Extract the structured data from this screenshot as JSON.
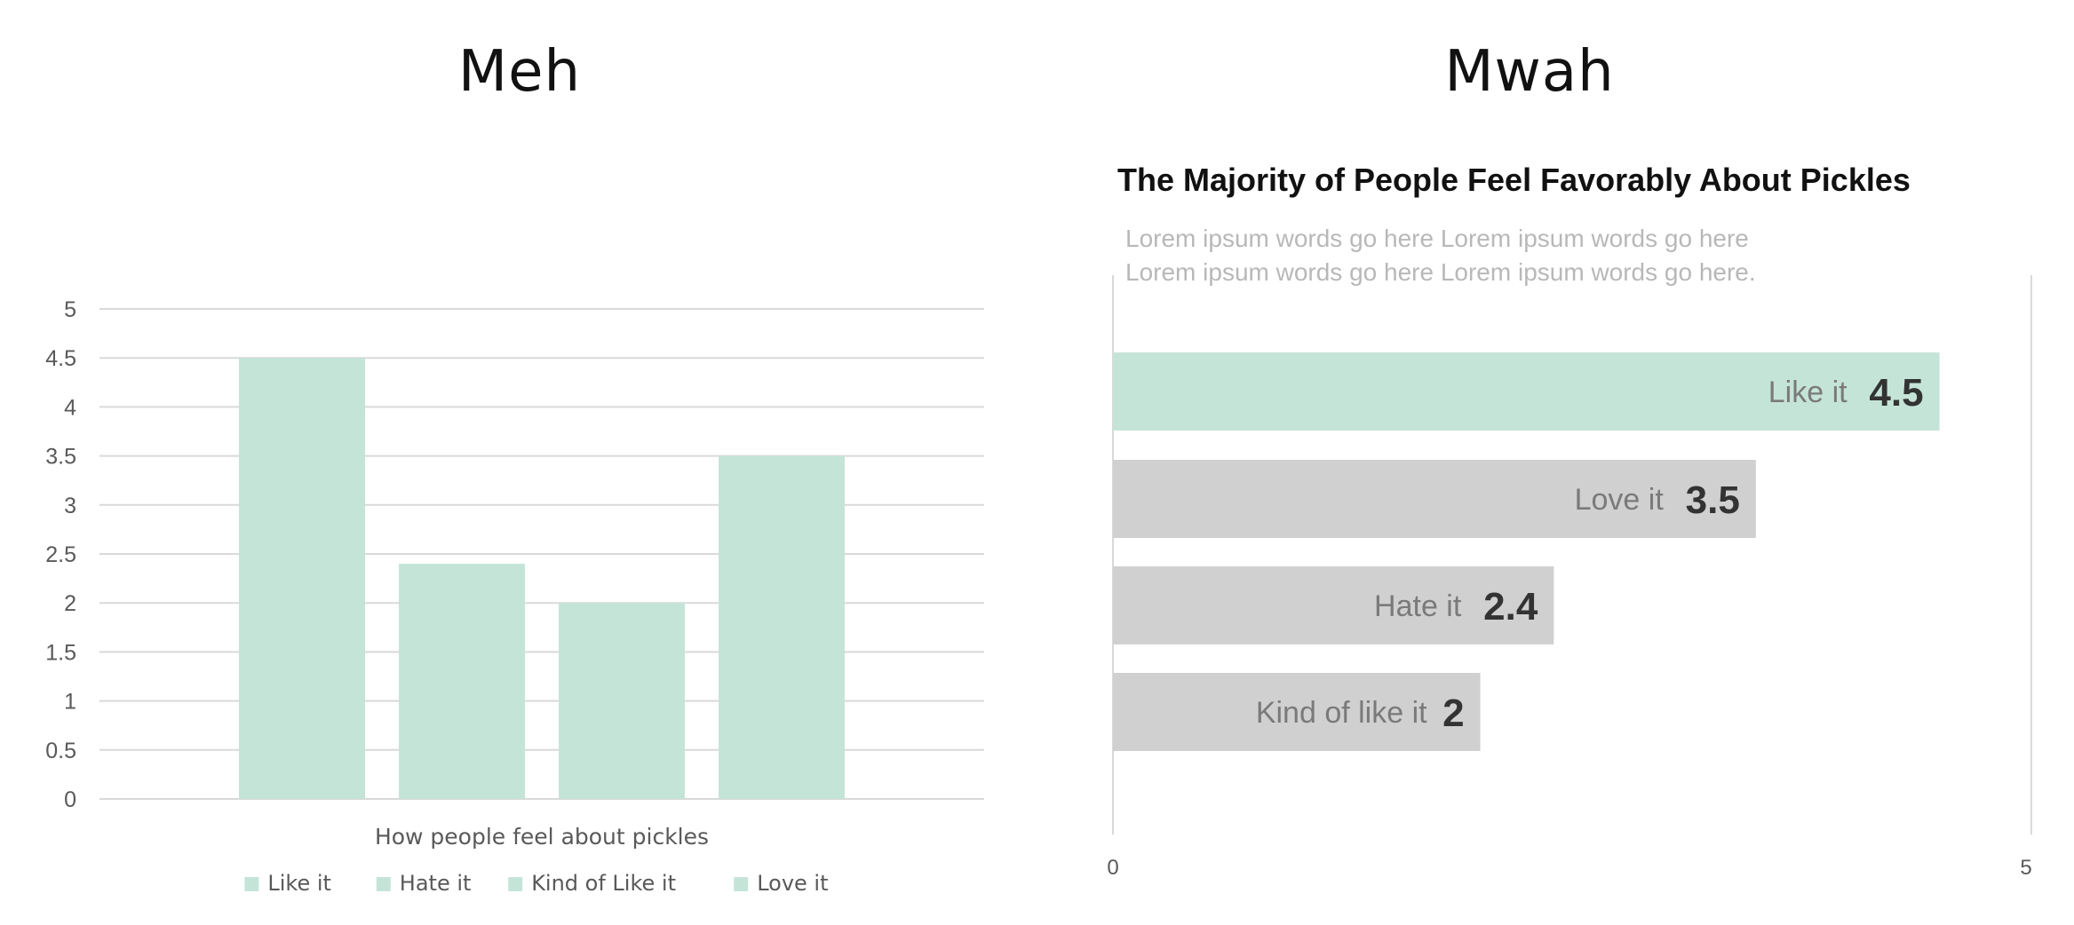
{
  "headings": {
    "left": "Meh",
    "right": "Mwah"
  },
  "chart_data": [
    {
      "type": "bar",
      "title": "",
      "xlabel": "How people feel about pickles",
      "ylabel": "",
      "ylim": [
        0,
        5
      ],
      "yticks": [
        "0",
        "0.5",
        "1",
        "1.5",
        "2",
        "2.5",
        "3",
        "3.5",
        "4",
        "4.5",
        "5"
      ],
      "grid": true,
      "legend_position": "bottom",
      "categories": [
        "How people feel about pickles"
      ],
      "series": [
        {
          "name": "Like it",
          "values": [
            4.5
          ]
        },
        {
          "name": "Hate it",
          "values": [
            2.4
          ]
        },
        {
          "name": "Kind of Like it",
          "values": [
            2
          ]
        },
        {
          "name": "Love it",
          "values": [
            3.5
          ]
        }
      ],
      "colors": {
        "bar": "#c5e4d8",
        "grid": "#d9d9d9",
        "tick_text": "#595959",
        "label_text": "#595959"
      }
    },
    {
      "type": "bar",
      "orientation": "horizontal",
      "title": "The Majority of People Feel Favorably About Pickles",
      "subtitle": "Lorem ipsum words go here Lorem ipsum words go here Lorem ipsum words go here Lorem ipsum words go here.",
      "xlim": [
        0,
        5
      ],
      "xticks": [
        "0",
        "5"
      ],
      "grid": false,
      "categories": [
        "Like it",
        "Love it",
        "Hate it",
        "Kind of like it"
      ],
      "values": [
        4.5,
        3.5,
        2.4,
        2
      ],
      "value_labels": [
        "4.5",
        "3.5",
        "2.4",
        "2"
      ],
      "highlight": "Like it",
      "colors": {
        "highlight": "#c5e4d8",
        "default": "#d0d0d0",
        "category_text": "#7a7a7a",
        "value_text": "#333333",
        "axis": "#d9d9d9"
      }
    }
  ]
}
